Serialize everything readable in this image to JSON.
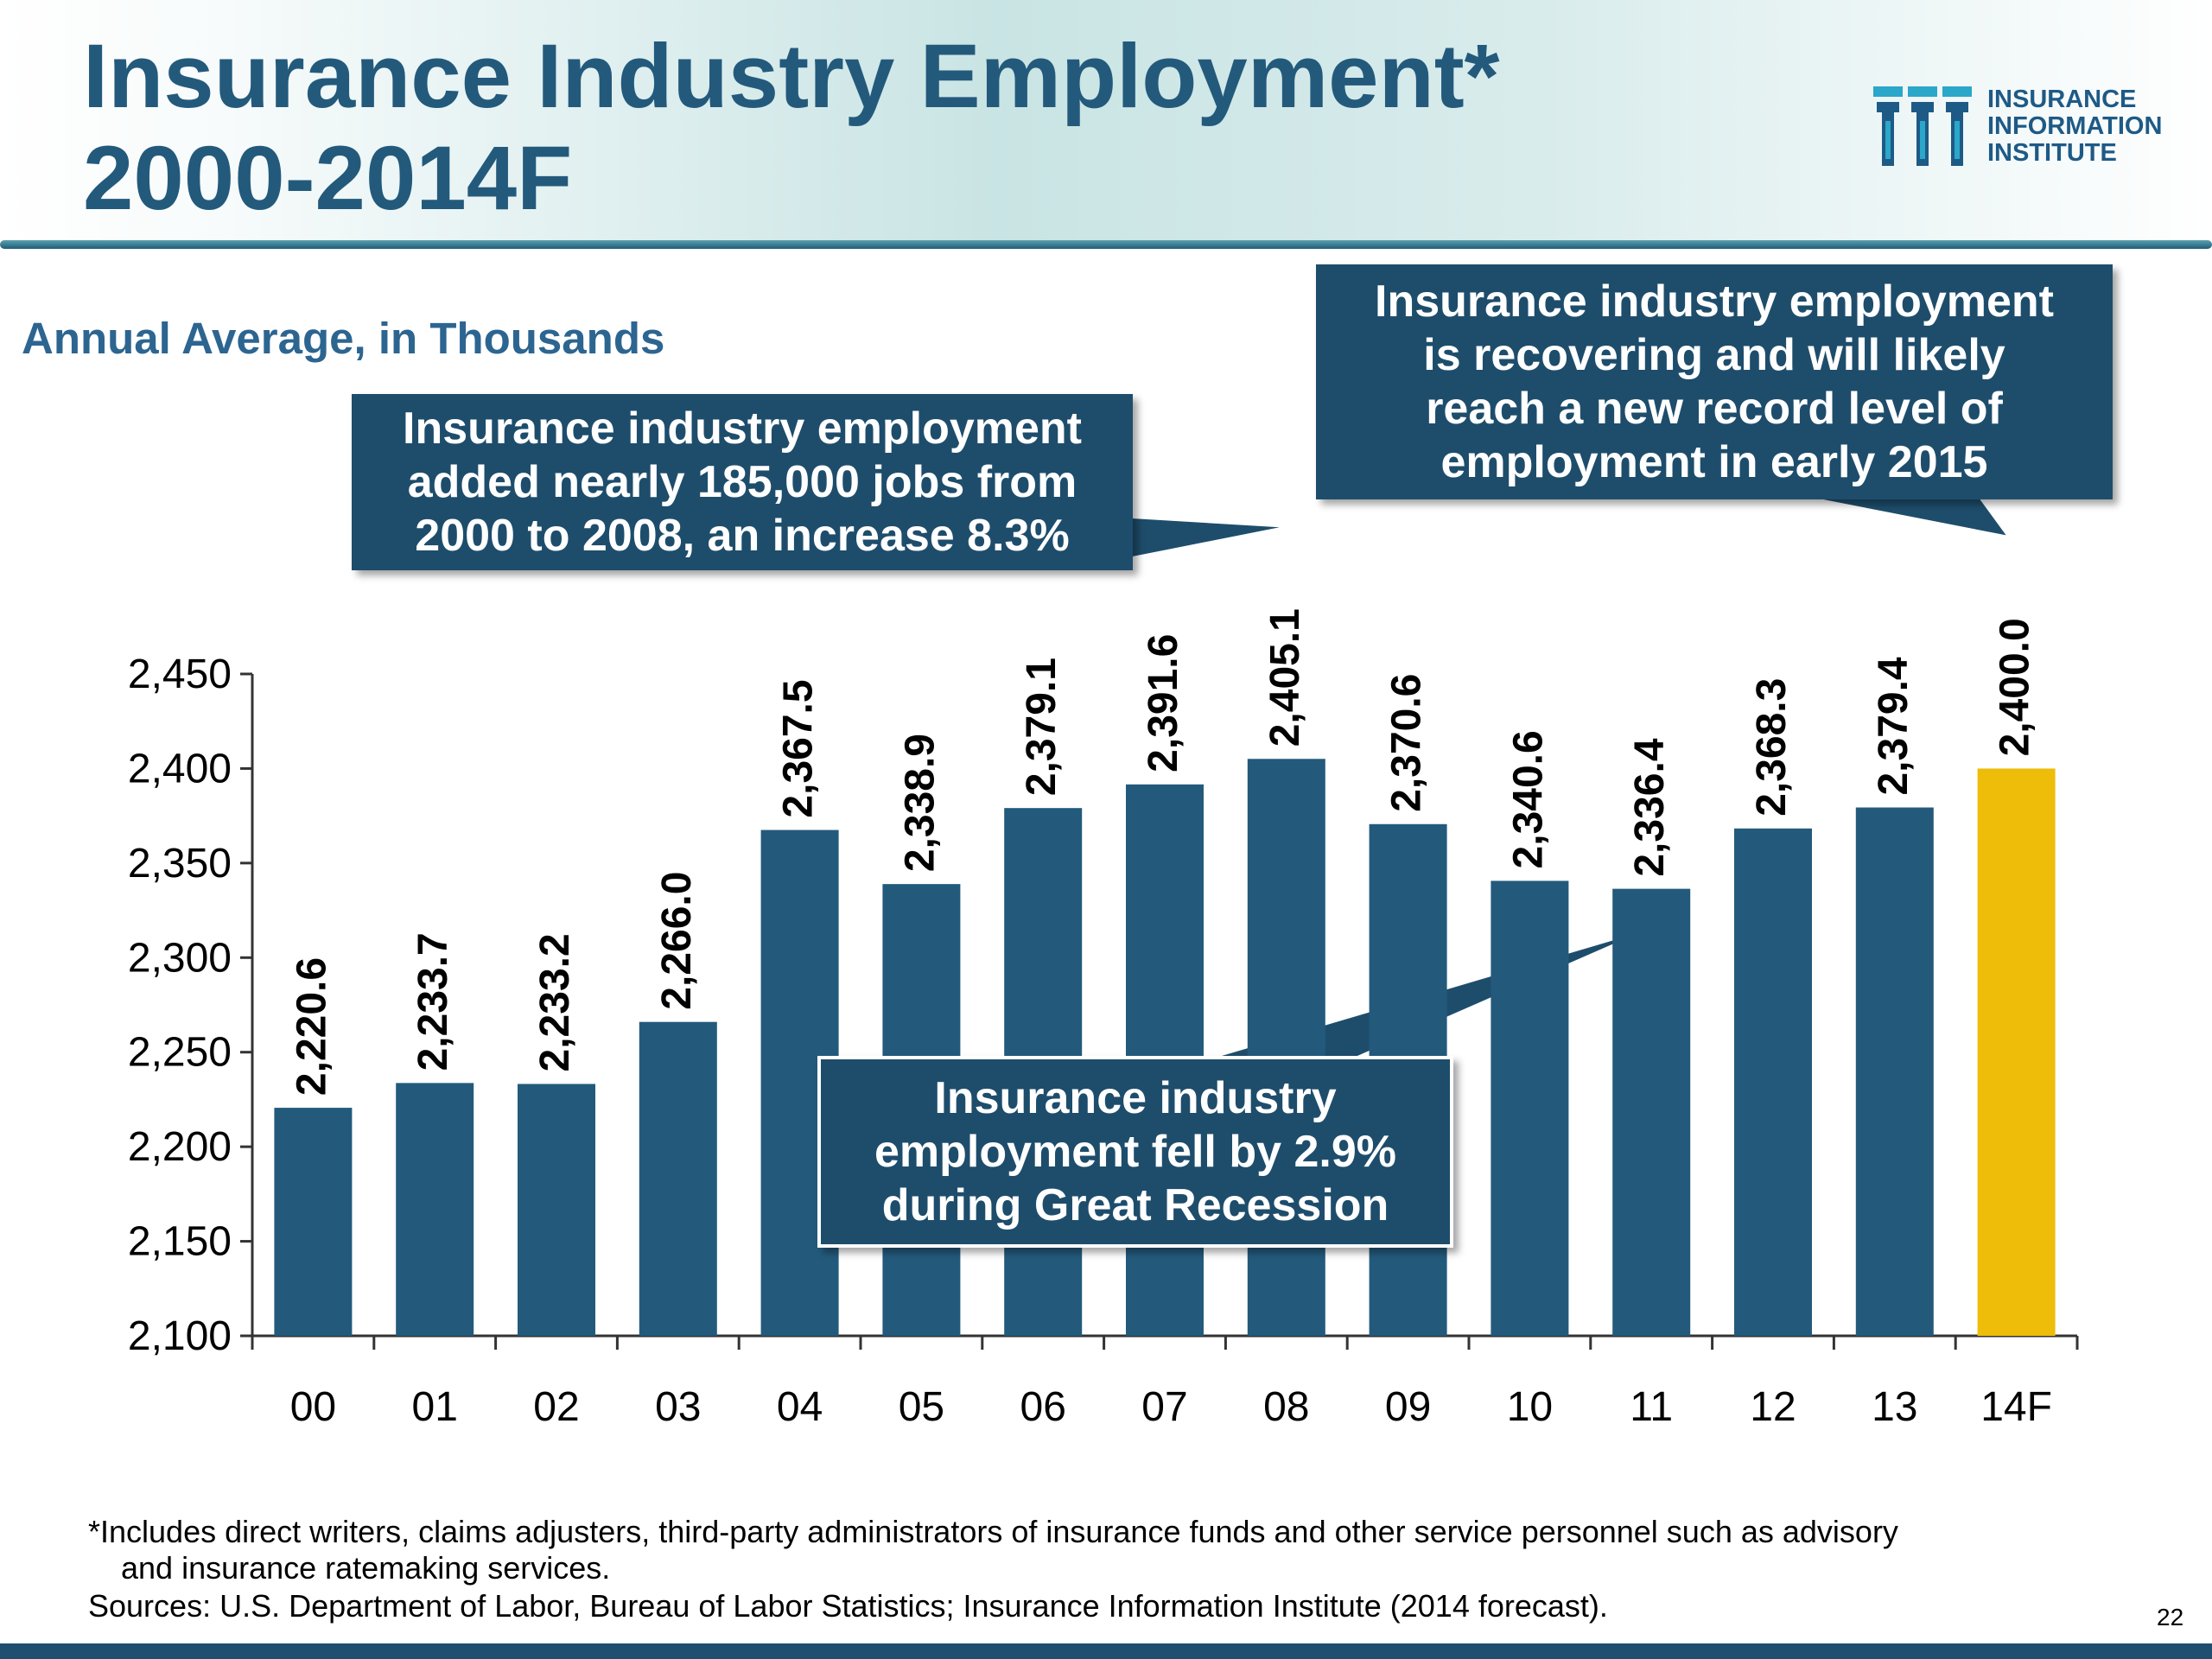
{
  "header": {
    "title_line1": "Insurance Industry Employment*",
    "title_line2": "2000-2014F",
    "logo": {
      "line1": "INSURANCE",
      "line2": "INFORMATION",
      "line3": "INSTITUTE",
      "colors": [
        "#2aa7c9",
        "#1e5a86"
      ]
    }
  },
  "chart_data": {
    "type": "bar",
    "subtitle": "Annual Average, in Thousands",
    "categories": [
      "00",
      "01",
      "02",
      "03",
      "04",
      "05",
      "06",
      "07",
      "08",
      "09",
      "10",
      "11",
      "12",
      "13",
      "14F"
    ],
    "values": [
      2220.6,
      2233.7,
      2233.2,
      2266.0,
      2367.5,
      2338.9,
      2379.1,
      2391.6,
      2405.1,
      2370.6,
      2340.6,
      2336.4,
      2368.3,
      2379.4,
      2400.0
    ],
    "value_labels": [
      "2,220.6",
      "2,233.7",
      "2,233.2",
      "2,266.0",
      "2,367.5",
      "2,338.9",
      "2,379.1",
      "2,391.6",
      "2,405.1",
      "2,370.6",
      "2,340.6",
      "2,336.4",
      "2,368.3",
      "2,379.4",
      "2,400.0"
    ],
    "ylim": [
      2100,
      2450
    ],
    "yticks": [
      2100,
      2150,
      2200,
      2250,
      2300,
      2350,
      2400,
      2450
    ],
    "ytick_labels": [
      "2,100",
      "2,150",
      "2,200",
      "2,250",
      "2,300",
      "2,350",
      "2,400",
      "2,450"
    ],
    "grid": false,
    "bar_color": "#235a7c",
    "highlight_color": "#edbd0a",
    "highlight_category": "14F",
    "annotations": [
      {
        "lines": [
          "Insurance industry employment",
          "added nearly 185,000 jobs from",
          "2000 to 2008, an increase 8.3%"
        ],
        "points_to": "08"
      },
      {
        "lines": [
          "Insurance industry employment",
          "is recovering and will likely",
          "reach a new record level of",
          "employment in early 2015"
        ],
        "points_to": "14F"
      },
      {
        "lines": [
          "Insurance industry",
          "employment fell by 2.9%",
          "during Great Recession"
        ],
        "points_to": "11"
      }
    ]
  },
  "footer": {
    "footnote_line1": "*Includes direct writers, claims adjusters, third-party administrators of insurance funds and other service personnel such as advisory",
    "footnote_line2": "and insurance ratemaking services.",
    "sources": "Sources: U.S. Department of Labor, Bureau of Labor Statistics; Insurance Information Institute (2014 forecast).",
    "page_number": "22"
  }
}
